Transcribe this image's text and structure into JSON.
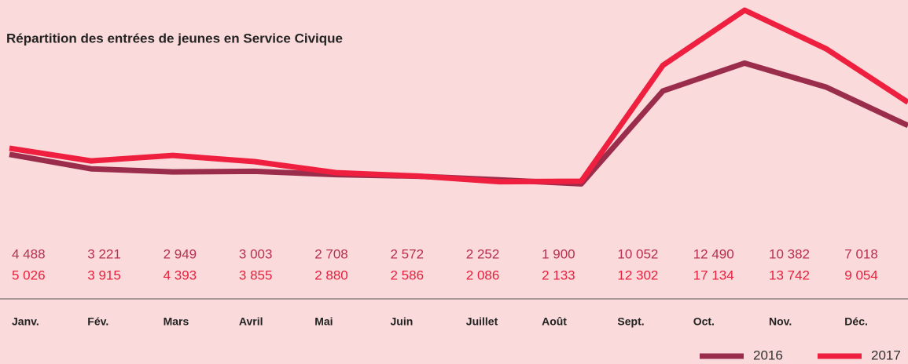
{
  "chart_data": {
    "type": "line",
    "title": "Répartition des entrées de jeunes en Service Civique",
    "categories": [
      "Janv.",
      "Fév.",
      "Mars",
      "Avril",
      "Mai",
      "Juin",
      "Juillet",
      "Août",
      "Sept.",
      "Oct.",
      "Nov.",
      "Déc."
    ],
    "series": [
      {
        "name": "2016",
        "color": "#9b2d4c",
        "values": [
          4488,
          3221,
          2949,
          3003,
          2708,
          2572,
          2252,
          1900,
          10052,
          12490,
          10382,
          7018
        ],
        "value_labels": [
          "4 488",
          "3 221",
          "2 949",
          "3 003",
          "2 708",
          "2 572",
          "2 252",
          "1 900",
          "10 052",
          "12 490",
          "10 382",
          "7 018"
        ]
      },
      {
        "name": "2017",
        "color": "#ee1f3f",
        "values": [
          5026,
          3915,
          4393,
          3855,
          2880,
          2586,
          2086,
          2133,
          12302,
          17134,
          13742,
          9054
        ],
        "value_labels": [
          "5 026",
          "3 915",
          "4 393",
          "3 855",
          "2 880",
          "2 586",
          "2 086",
          "2 133",
          "12 302",
          "17 134",
          "13 742",
          "9 054"
        ]
      }
    ],
    "legend": "bottom-right"
  }
}
